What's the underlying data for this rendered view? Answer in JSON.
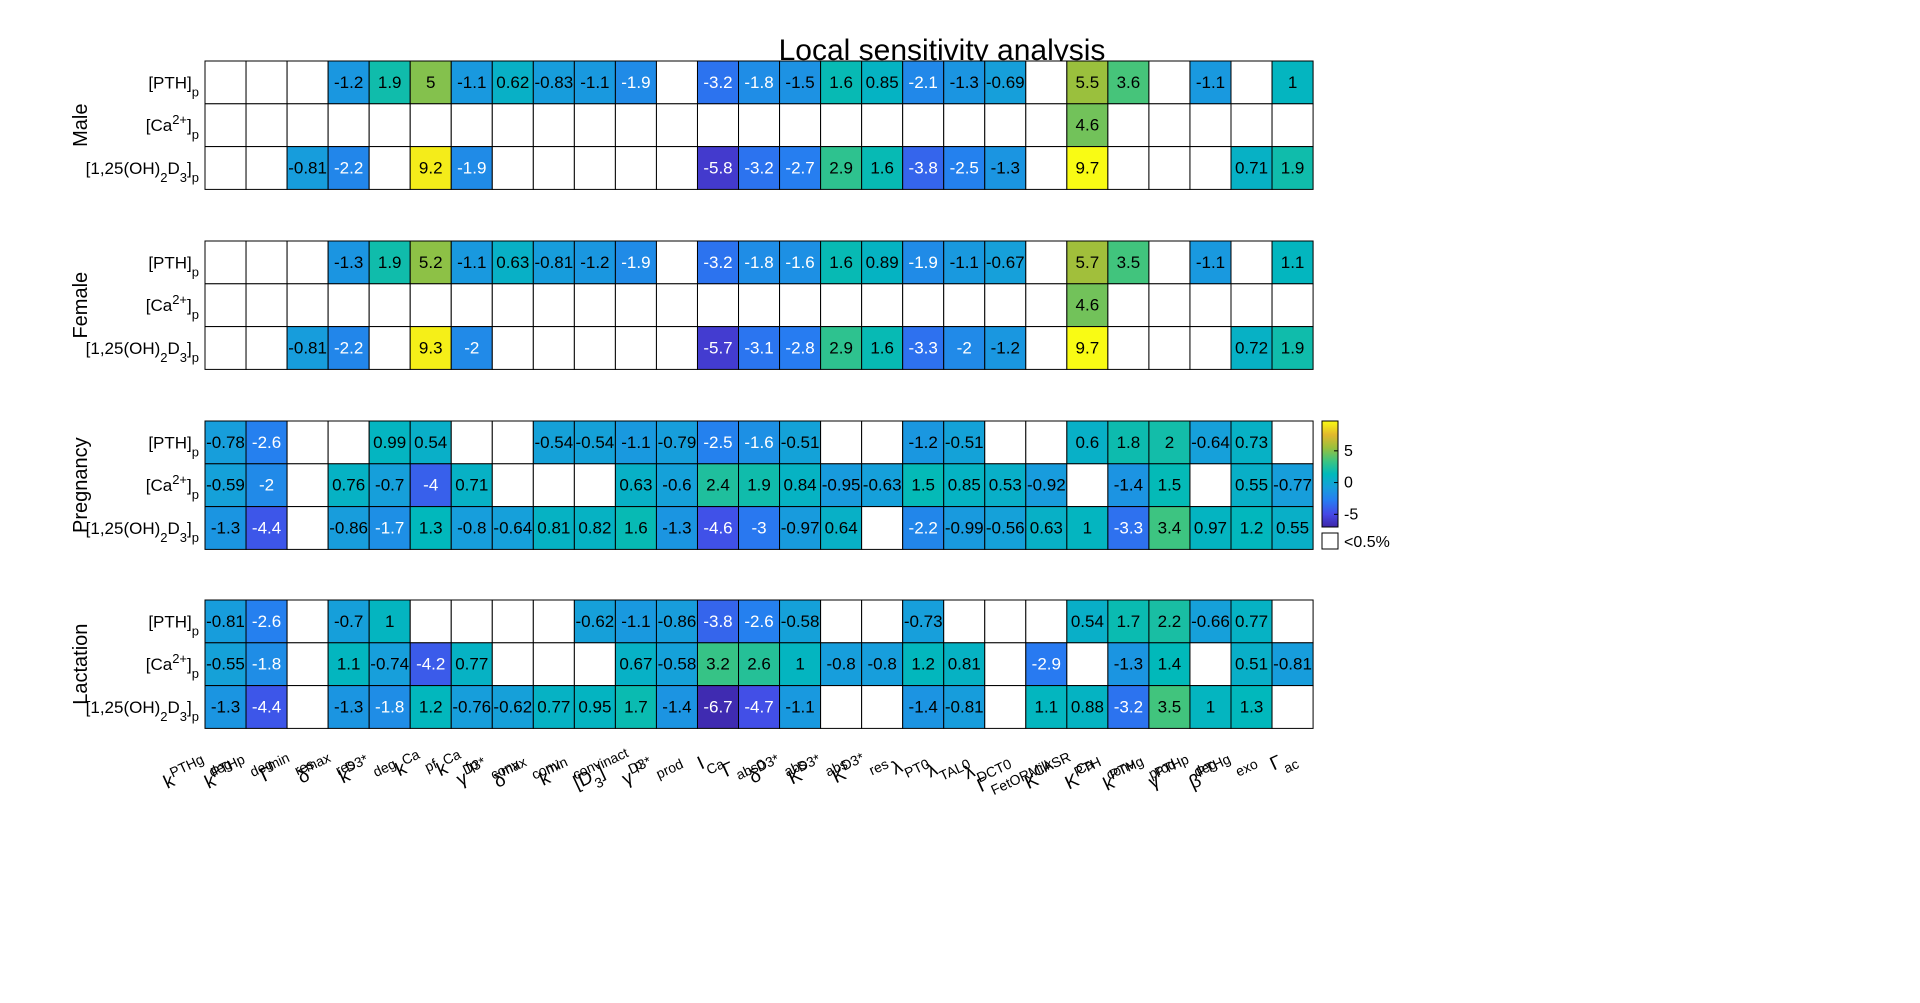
{
  "chart_data": {
    "type": "heatmap",
    "title": "Local sensitivity analysis",
    "row_labels": [
      "[PTH]_p",
      "[Ca^{2+}]_p",
      "[1,25(OH)_2D_3]_p"
    ],
    "col_labels": [
      "k^{PTHg}_{deg}",
      "k^{PTHp}_{deg}",
      "Γ^{min}_{res}",
      "δ^{max}_{res}",
      "k^{D3*}_{deg}",
      "k^{Ca}_{pf}",
      "k^{Ca}_{fp}",
      "γ^{D3*}_{conv}",
      "δ^{max}_{conv}",
      "k^{min}_{conv}",
      "[D_3]^{inact}_p",
      "γ^{D3*}_{prod}",
      "I_{Ca}",
      "Γ_{abs0}",
      "δ^{D3*}_{abs}",
      "K^{D3*}_{abs}",
      "K^{D3*}_{res}",
      "λ_{PT0}",
      "λ_{TAL0}",
      "λ_{DCT0}",
      "Γ_{FetORMilk}",
      "K^{CASR}_{Ca}",
      "K^{PTH}_{conv}",
      "k^{PTHg}_{prod}",
      "γ^{PTHp}_{deg}",
      "β^{PTHg}_{exo}",
      "Γ_{ac}"
    ],
    "groups": [
      {
        "name": "Male",
        "values": [
          [
            null,
            null,
            null,
            -1.2,
            1.9,
            5,
            -1.1,
            0.62,
            -0.83,
            -1.1,
            -1.9,
            null,
            -3.2,
            -1.8,
            -1.5,
            1.6,
            0.85,
            -2.1,
            -1.3,
            -0.69,
            null,
            5.5,
            3.6,
            null,
            -1.1,
            null,
            1
          ],
          [
            null,
            null,
            null,
            null,
            null,
            null,
            null,
            null,
            null,
            null,
            null,
            null,
            null,
            null,
            null,
            null,
            null,
            null,
            null,
            null,
            null,
            4.6,
            null,
            null,
            null,
            null,
            null
          ],
          [
            null,
            null,
            -0.81,
            -2.2,
            null,
            9.2,
            -1.9,
            null,
            null,
            null,
            null,
            null,
            -5.8,
            -3.2,
            -2.7,
            2.9,
            1.6,
            -3.8,
            -2.5,
            -1.3,
            null,
            9.7,
            null,
            null,
            null,
            0.71,
            1.9
          ]
        ]
      },
      {
        "name": "Female",
        "values": [
          [
            null,
            null,
            null,
            -1.3,
            1.9,
            5.2,
            -1.1,
            0.63,
            -0.81,
            -1.2,
            -1.9,
            null,
            -3.2,
            -1.8,
            -1.6,
            1.6,
            0.89,
            -1.9,
            -1.1,
            -0.67,
            null,
            5.7,
            3.5,
            null,
            -1.1,
            null,
            1.1
          ],
          [
            null,
            null,
            null,
            null,
            null,
            null,
            null,
            null,
            null,
            null,
            null,
            null,
            null,
            null,
            null,
            null,
            null,
            null,
            null,
            null,
            null,
            4.6,
            null,
            null,
            null,
            null,
            null
          ],
          [
            null,
            null,
            -0.81,
            -2.2,
            null,
            9.3,
            -2,
            null,
            null,
            null,
            null,
            null,
            -5.7,
            -3.1,
            -2.8,
            2.9,
            1.6,
            -3.3,
            -2,
            -1.2,
            null,
            9.7,
            null,
            null,
            null,
            0.72,
            1.9
          ]
        ]
      },
      {
        "name": "Pregnancy",
        "values": [
          [
            -0.78,
            -2.6,
            null,
            null,
            0.99,
            0.54,
            null,
            null,
            -0.54,
            -0.54,
            -1.1,
            -0.79,
            -2.5,
            -1.6,
            -0.51,
            null,
            null,
            -1.2,
            -0.51,
            null,
            null,
            0.6,
            1.8,
            2,
            -0.64,
            0.73,
            null
          ],
          [
            -0.59,
            -2,
            null,
            0.76,
            -0.7,
            -4,
            0.71,
            null,
            null,
            null,
            0.63,
            -0.6,
            2.4,
            1.9,
            0.84,
            -0.95,
            -0.63,
            1.5,
            0.85,
            0.53,
            -0.92,
            null,
            -1.4,
            1.5,
            null,
            0.55,
            -0.77
          ],
          [
            -1.3,
            -4.4,
            null,
            -0.86,
            -1.7,
            1.3,
            -0.8,
            -0.64,
            0.81,
            0.82,
            1.6,
            -1.3,
            -4.6,
            -3,
            -0.97,
            0.64,
            null,
            -2.2,
            -0.99,
            -0.56,
            0.63,
            1,
            -3.3,
            3.4,
            0.97,
            1.2,
            0.55
          ]
        ]
      },
      {
        "name": "Lactation",
        "values": [
          [
            -0.81,
            -2.6,
            null,
            -0.7,
            1,
            null,
            null,
            null,
            null,
            -0.62,
            -1.1,
            -0.86,
            -3.8,
            -2.6,
            -0.58,
            null,
            null,
            -0.73,
            null,
            null,
            null,
            0.54,
            1.7,
            2.2,
            -0.66,
            0.77,
            null
          ],
          [
            -0.55,
            -1.8,
            null,
            1.1,
            -0.74,
            -4.2,
            0.77,
            null,
            null,
            null,
            0.67,
            -0.58,
            3.2,
            2.6,
            1,
            -0.8,
            -0.8,
            1.2,
            0.81,
            null,
            -2.9,
            null,
            -1.3,
            1.4,
            null,
            0.51,
            -0.81
          ],
          [
            -1.3,
            -4.4,
            null,
            -1.3,
            -1.8,
            1.2,
            -0.76,
            -0.62,
            0.77,
            0.95,
            1.7,
            -1.4,
            -6.7,
            -4.7,
            -1.1,
            null,
            null,
            -1.4,
            -0.81,
            null,
            1.1,
            0.88,
            -3.2,
            3.5,
            1,
            1.3,
            null
          ]
        ]
      }
    ],
    "colorbar": {
      "colormap": "parula",
      "range": [
        -7,
        9.7
      ],
      "ticks": [
        "5",
        "0",
        "-5"
      ],
      "tick_values": [
        5,
        0,
        -5
      ],
      "null_label": "<0.5%"
    }
  }
}
